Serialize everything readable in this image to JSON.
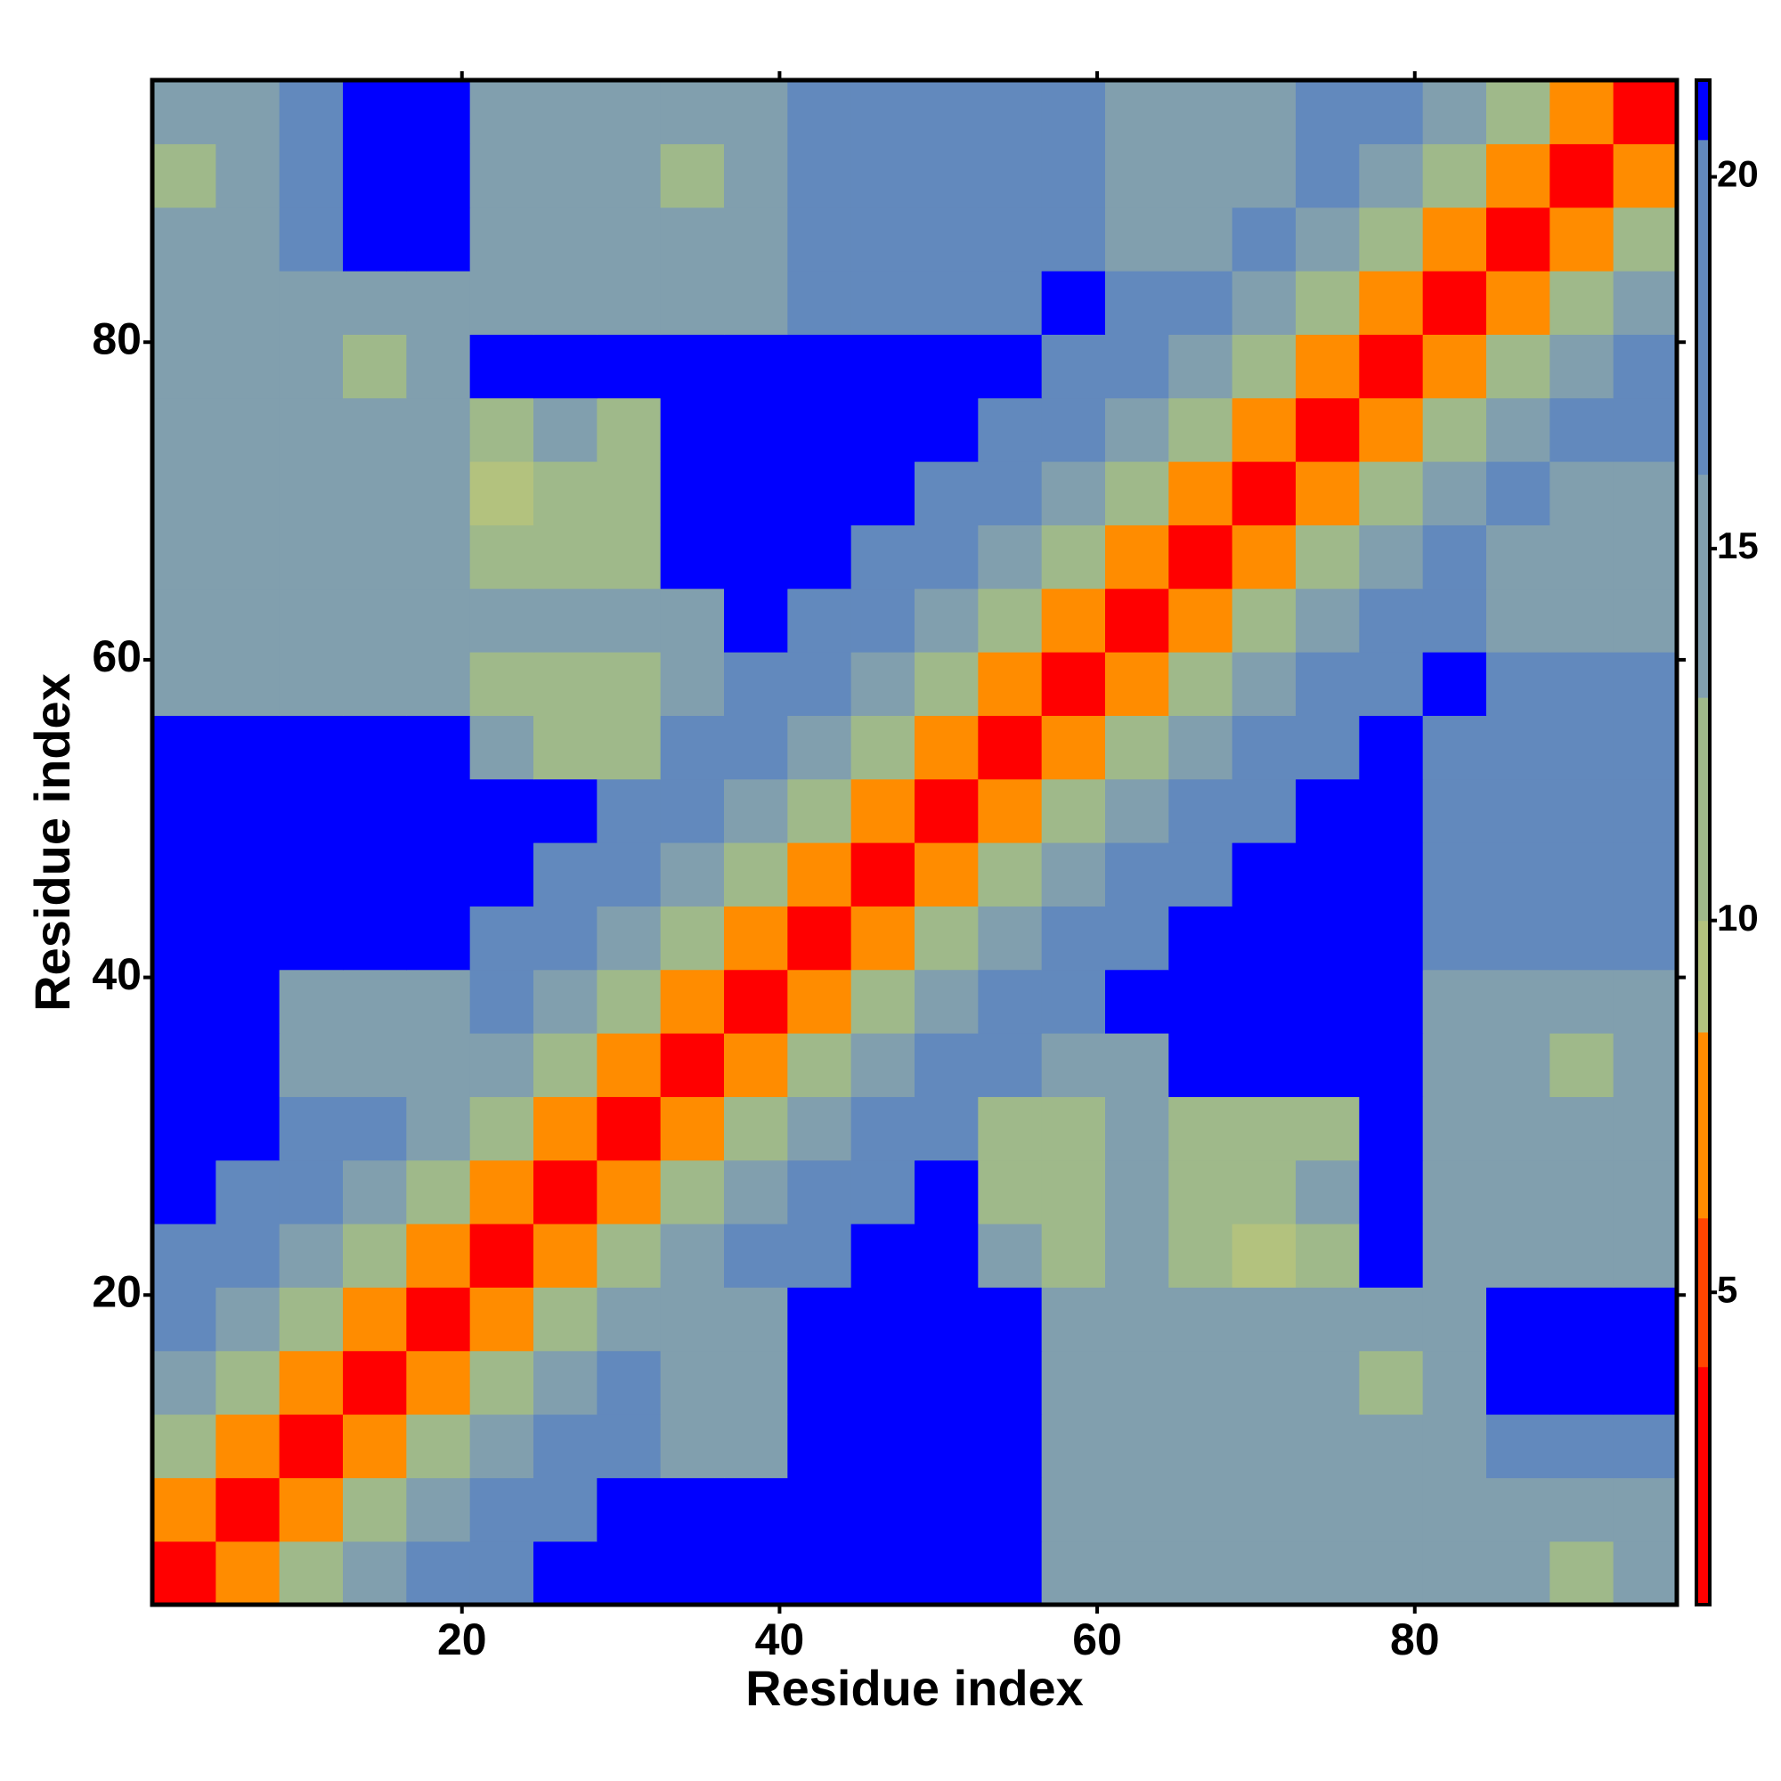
{
  "chart_data": {
    "type": "heatmap",
    "xlabel": "Residue index",
    "ylabel": "Residue index",
    "xlim": [
      0.5,
      96.5
    ],
    "ylim": [
      0.5,
      96.5
    ],
    "xticks": [
      20,
      40,
      60,
      80
    ],
    "yticks": [
      20,
      40,
      60,
      80
    ],
    "clim": [
      0.8,
      21.3
    ],
    "cticks": [
      5,
      10,
      15,
      20
    ],
    "colorscale": [
      {
        "max": 4,
        "color": "#ff0000"
      },
      {
        "max": 6,
        "color": "#ff4500"
      },
      {
        "max": 8.5,
        "color": "#ff8c00"
      },
      {
        "max": 10,
        "color": "#b3c27e"
      },
      {
        "max": 13,
        "color": "#9fb98a"
      },
      {
        "max": 16,
        "color": "#819fae"
      },
      {
        "max": 20.5,
        "color": "#6289bd"
      },
      {
        "max": 21.3,
        "color": "#0000ff"
      }
    ],
    "xbins": [
      0.5,
      4.5,
      8.5,
      12.5,
      16.5,
      20.5,
      24.5,
      28.5,
      32.5,
      36.5,
      40.5,
      44.5,
      48.5,
      52.5,
      56.5,
      60.5,
      64.5,
      68.5,
      72.5,
      76.5,
      80.5,
      84.5,
      88.5,
      92.5,
      96.5
    ],
    "ybins": [
      0.5,
      4.5,
      8.5,
      12.5,
      16.5,
      20.5,
      24.5,
      28.5,
      32.5,
      36.5,
      40.5,
      44.5,
      48.5,
      52.5,
      56.5,
      60.5,
      64.5,
      68.5,
      72.5,
      76.5,
      80.5,
      84.5,
      88.5,
      92.5,
      96.5
    ],
    "z": [
      [
        2,
        7,
        11,
        14,
        17,
        19,
        21,
        21,
        21,
        21,
        21,
        21,
        21,
        21,
        16,
        16,
        16,
        16,
        16,
        16,
        16,
        15,
        13,
        16
      ],
      [
        7,
        2,
        7,
        11,
        14,
        17,
        19,
        21,
        21,
        21,
        21,
        21,
        21,
        21,
        16,
        16,
        16,
        16,
        16,
        16,
        16,
        14,
        14,
        15
      ],
      [
        11,
        7,
        2,
        7,
        11,
        14,
        17,
        19,
        16,
        16,
        21,
        21,
        21,
        21,
        16,
        14,
        16,
        16,
        14,
        16,
        16,
        17,
        17,
        17
      ],
      [
        14,
        11,
        7,
        2,
        7,
        11,
        14,
        17,
        16,
        16,
        21,
        21,
        21,
        21,
        16,
        16,
        16,
        16,
        16,
        13,
        16,
        21,
        21,
        21
      ],
      [
        17,
        14,
        11,
        7,
        2,
        7,
        11,
        14,
        16,
        16,
        21,
        21,
        21,
        21,
        16,
        16,
        16,
        14,
        16,
        16,
        16,
        21,
        21,
        21
      ],
      [
        19,
        17,
        14,
        11,
        7,
        2,
        7,
        11,
        14,
        17,
        19,
        21,
        21,
        14,
        13,
        15,
        12,
        9,
        13,
        21,
        16,
        16,
        16,
        16
      ],
      [
        21,
        19,
        17,
        14,
        11,
        7,
        2,
        7,
        11,
        14,
        17,
        19,
        21,
        12,
        11,
        14,
        13,
        12,
        14,
        21,
        16,
        16,
        16,
        16
      ],
      [
        21,
        21,
        19,
        17,
        14,
        11,
        7,
        2,
        7,
        11,
        14,
        17,
        19,
        13,
        12,
        14,
        13,
        13,
        13,
        21,
        16,
        16,
        16,
        16
      ],
      [
        21,
        21,
        16,
        16,
        16,
        14,
        11,
        7,
        2,
        7,
        11,
        14,
        17,
        19,
        14,
        15,
        21,
        21,
        21,
        21,
        16,
        16,
        13,
        16
      ],
      [
        21,
        21,
        16,
        16,
        16,
        17,
        14,
        11,
        7,
        2,
        7,
        11,
        14,
        17,
        19,
        21,
        21,
        21,
        21,
        21,
        16,
        16,
        16,
        16
      ],
      [
        21,
        21,
        21,
        21,
        21,
        19,
        17,
        14,
        11,
        7,
        2,
        7,
        11,
        14,
        17,
        19,
        21,
        21,
        21,
        21,
        17,
        17,
        17,
        17
      ],
      [
        21,
        21,
        21,
        21,
        21,
        21,
        19,
        17,
        14,
        11,
        7,
        2,
        7,
        11,
        14,
        17,
        19,
        21,
        21,
        21,
        17,
        17,
        17,
        17
      ],
      [
        21,
        21,
        21,
        21,
        21,
        21,
        21,
        19,
        17,
        14,
        11,
        7,
        2,
        7,
        11,
        14,
        17,
        19,
        21,
        21,
        17,
        17,
        17,
        17
      ],
      [
        21,
        21,
        21,
        21,
        21,
        14,
        12,
        13,
        19,
        17,
        14,
        11,
        7,
        2,
        7,
        11,
        14,
        17,
        19,
        21,
        17,
        17,
        17,
        17
      ],
      [
        16,
        16,
        16,
        16,
        16,
        13,
        11,
        12,
        14,
        19,
        17,
        14,
        11,
        7,
        2,
        7,
        11,
        14,
        17,
        19,
        21,
        17,
        17,
        17
      ],
      [
        16,
        16,
        14,
        16,
        16,
        15,
        14,
        14,
        15,
        21,
        19,
        17,
        14,
        11,
        7,
        2,
        7,
        11,
        14,
        17,
        19,
        16,
        16,
        16
      ],
      [
        16,
        16,
        16,
        16,
        16,
        12,
        13,
        13,
        21,
        21,
        21,
        19,
        17,
        14,
        11,
        7,
        2,
        7,
        11,
        14,
        17,
        16,
        16,
        16
      ],
      [
        16,
        16,
        16,
        16,
        14,
        9,
        12,
        13,
        21,
        21,
        21,
        21,
        19,
        17,
        14,
        11,
        7,
        2,
        7,
        11,
        14,
        17,
        16,
        16
      ],
      [
        16,
        16,
        14,
        16,
        16,
        13,
        14,
        13,
        21,
        21,
        21,
        21,
        21,
        19,
        17,
        14,
        11,
        7,
        2,
        7,
        11,
        14,
        17,
        19
      ],
      [
        16,
        16,
        16,
        13,
        16,
        21,
        21,
        21,
        21,
        21,
        21,
        21,
        21,
        21,
        19,
        17,
        14,
        11,
        7,
        2,
        7,
        11,
        14,
        17
      ],
      [
        16,
        16,
        16,
        16,
        16,
        16,
        16,
        16,
        16,
        16,
        17,
        17,
        17,
        17,
        21,
        19,
        17,
        14,
        11,
        7,
        2,
        7,
        11,
        14
      ],
      [
        15,
        14,
        17,
        21,
        21,
        16,
        16,
        16,
        16,
        16,
        17,
        17,
        17,
        17,
        17,
        16,
        16,
        17,
        14,
        11,
        7,
        2,
        7,
        11
      ],
      [
        13,
        14,
        17,
        21,
        21,
        16,
        16,
        16,
        13,
        16,
        17,
        17,
        17,
        17,
        17,
        16,
        16,
        16,
        17,
        14,
        11,
        7,
        2,
        7
      ],
      [
        16,
        15,
        17,
        21,
        21,
        16,
        16,
        16,
        16,
        16,
        17,
        17,
        17,
        17,
        17,
        16,
        16,
        16,
        19,
        17,
        14,
        11,
        7,
        2
      ]
    ]
  }
}
